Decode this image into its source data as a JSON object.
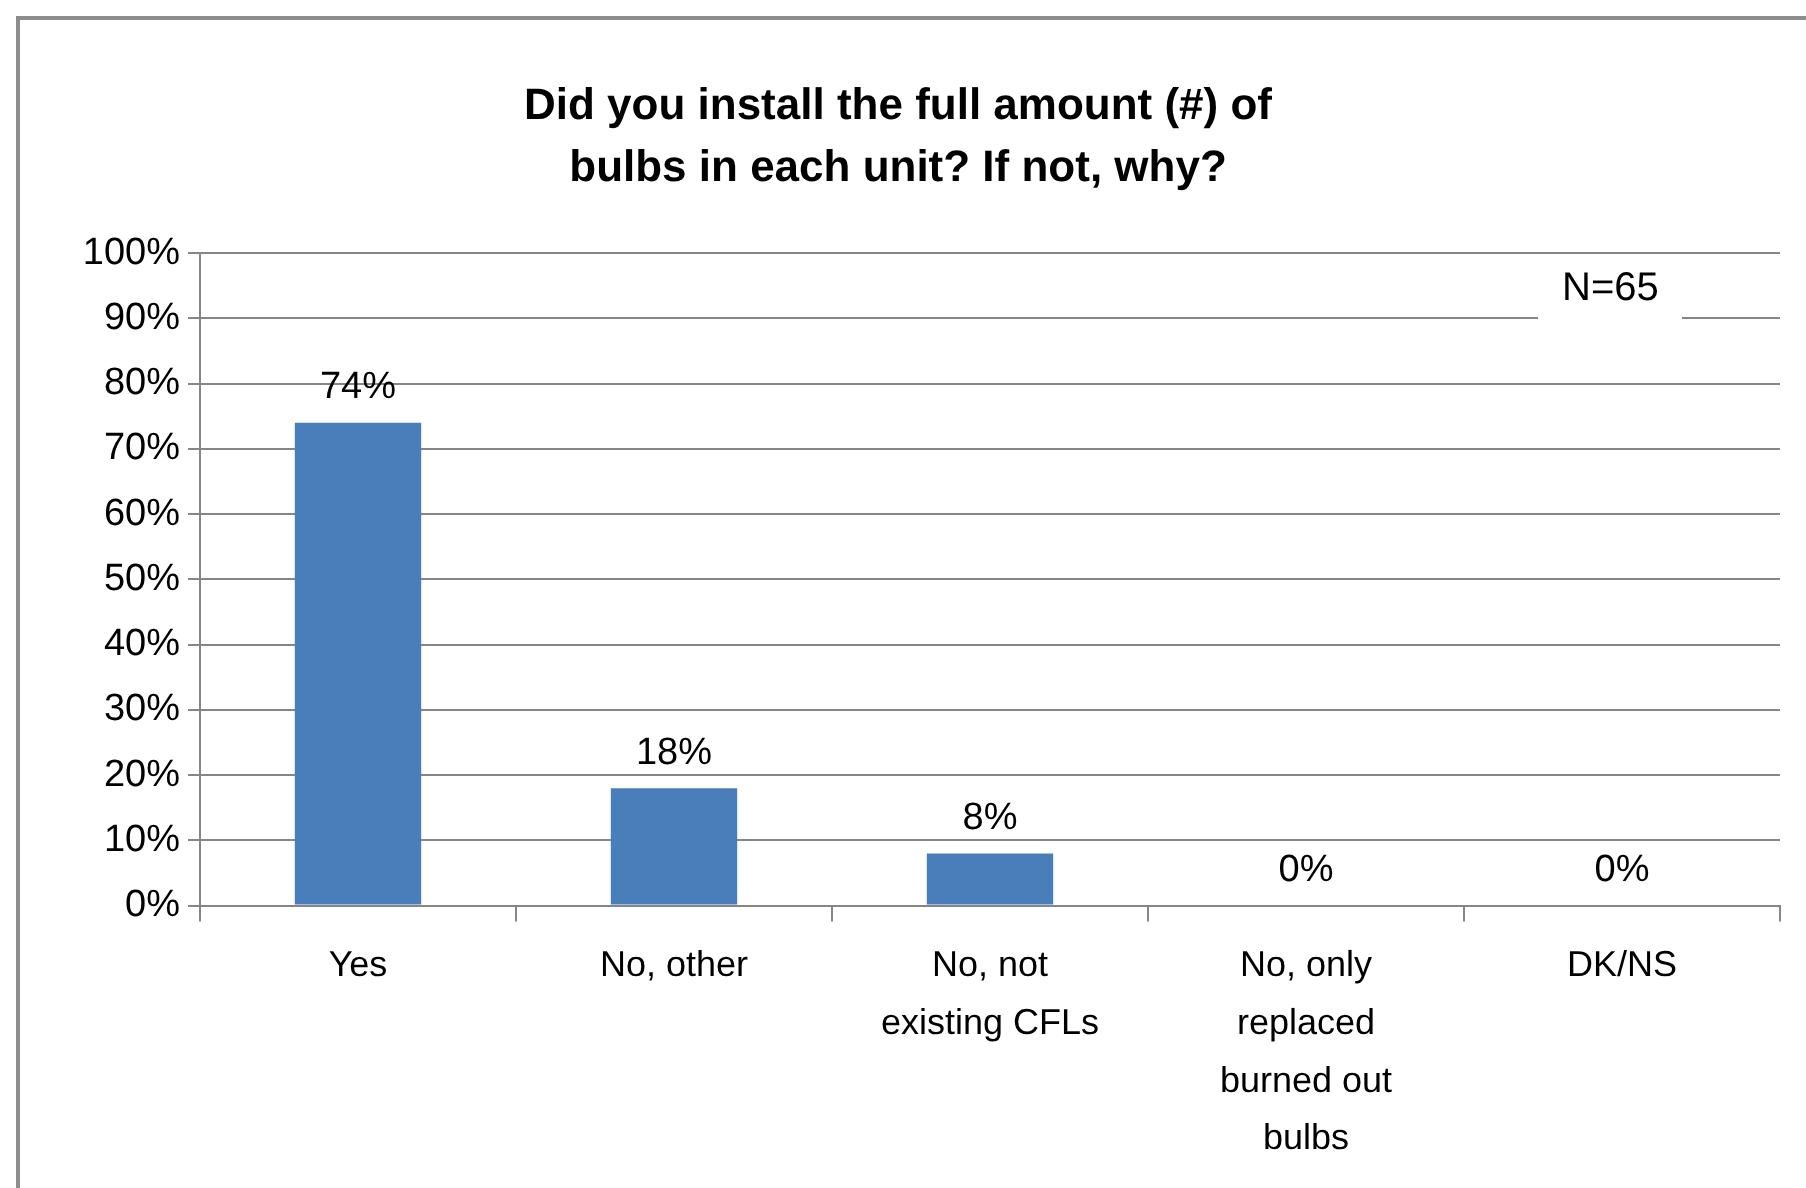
{
  "chart_data": {
    "type": "bar",
    "title": "Did you install the full amount (#) of bulbs in each unit? If not, why?",
    "categories": [
      "Yes",
      "No, other",
      "No, not existing CFLs",
      "No, only replaced burned out bulbs",
      "DK/NS"
    ],
    "values": [
      74,
      18,
      8,
      0,
      0
    ],
    "value_labels": [
      "74%",
      "18%",
      "8%",
      "0%",
      "0%"
    ],
    "color": "#4a7ebb",
    "ylim": [
      0,
      100
    ],
    "yticks": [
      {
        "value": 0,
        "label": "0%"
      },
      {
        "value": 10,
        "label": "10%"
      },
      {
        "value": 20,
        "label": "20%"
      },
      {
        "value": 30,
        "label": "30%"
      },
      {
        "value": 40,
        "label": "40%"
      },
      {
        "value": 50,
        "label": "50%"
      },
      {
        "value": 60,
        "label": "60%"
      },
      {
        "value": 70,
        "label": "70%"
      },
      {
        "value": 80,
        "label": "80%"
      },
      {
        "value": 90,
        "label": "90%"
      },
      {
        "value": 100,
        "label": "100%"
      }
    ],
    "grid": "y",
    "annotations": [
      "N=65"
    ]
  }
}
